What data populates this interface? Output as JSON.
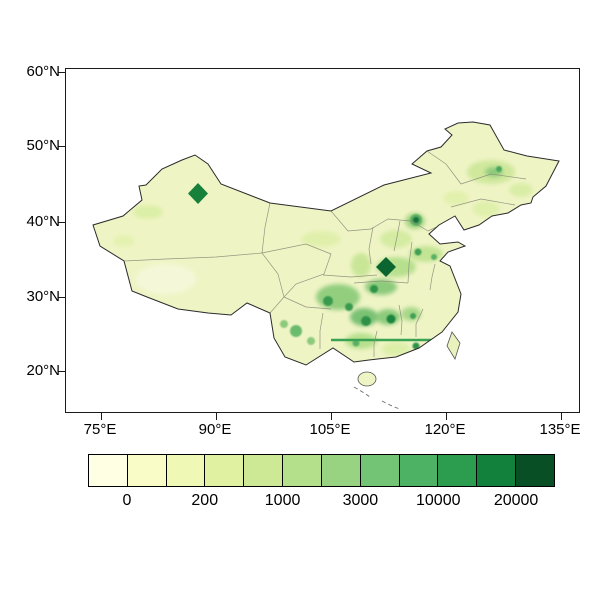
{
  "figure": {
    "background_color": "#ffffff"
  },
  "axes": {
    "y_ticks": [
      "60°N",
      "50°N",
      "40°N",
      "30°N",
      "20°N"
    ],
    "x_ticks": [
      "75°E",
      "90°E",
      "105°E",
      "120°E",
      "135°E"
    ]
  },
  "map": {
    "base_fill_color": "#eff4c5",
    "outline_color": "#2b2b2b",
    "province_border_color": "#8b8b78",
    "high_value_color": "#0a6531"
  },
  "colorbar": {
    "labels": [
      "0",
      "200",
      "1000",
      "3000",
      "10000",
      "20000"
    ],
    "label_boundary_indices": [
      1,
      3,
      5,
      7,
      9,
      11
    ],
    "colors": [
      "#ffffe3",
      "#f9fcc6",
      "#eff8b4",
      "#e0f1a2",
      "#cde996",
      "#b5e08b",
      "#97d381",
      "#74c476",
      "#4eb264",
      "#2c9c4f",
      "#11813c",
      "#084f26"
    ]
  },
  "chart_data": {
    "type": "heatmap",
    "title": "",
    "x_ticks": [
      "75°E",
      "90°E",
      "105°E",
      "120°E",
      "135°E"
    ],
    "y_ticks": [
      "60°N",
      "50°N",
      "40°N",
      "30°N",
      "20°N"
    ],
    "colorbar_values": [
      0,
      200,
      1000,
      3000,
      10000,
      20000
    ]
  }
}
